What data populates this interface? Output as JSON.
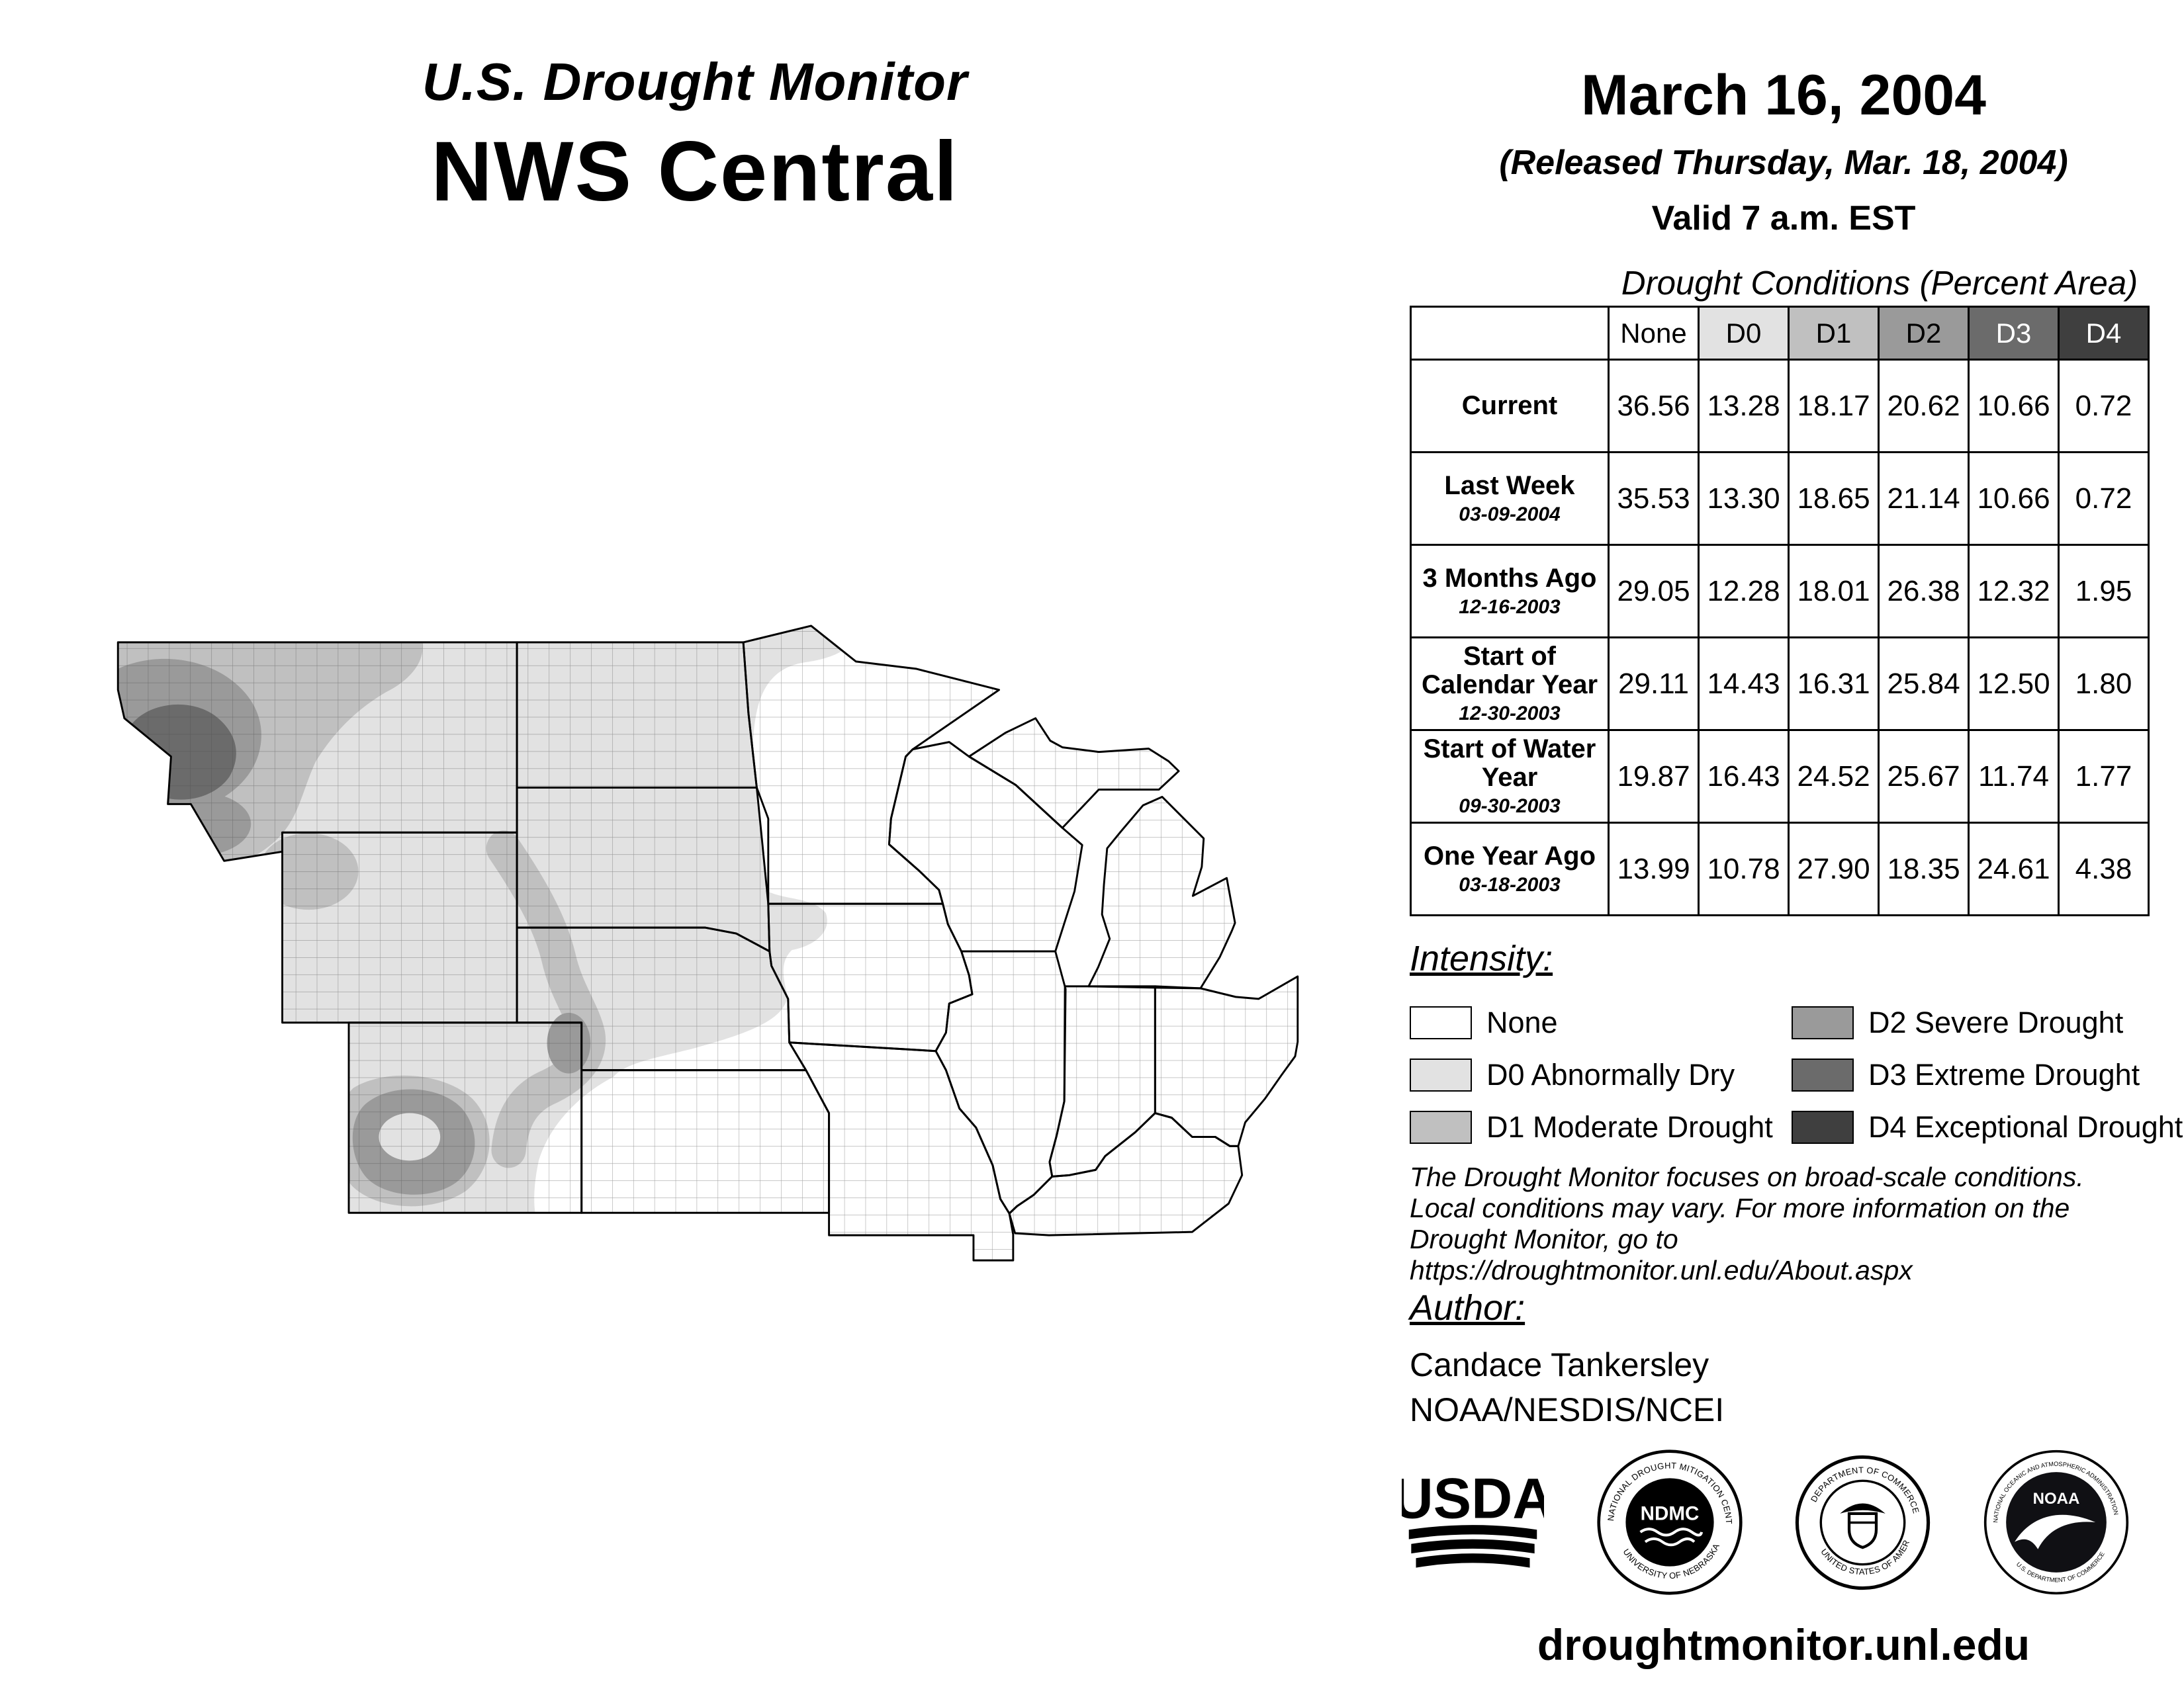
{
  "header": {
    "title": "U.S. Drought Monitor",
    "region": "NWS Central",
    "date": "March 16, 2004",
    "released": "(Released Thursday, Mar. 18, 2004)",
    "valid": "Valid 7 a.m. EST"
  },
  "table": {
    "title": "Drought Conditions (Percent Area)",
    "columns": [
      {
        "label": "None",
        "bg": "#ffffff",
        "fg": "#000000"
      },
      {
        "label": "D0",
        "bg": "#e2e2e2",
        "fg": "#000000"
      },
      {
        "label": "D1",
        "bg": "#c0c0c0",
        "fg": "#000000"
      },
      {
        "label": "D2",
        "bg": "#9a9a9a",
        "fg": "#000000"
      },
      {
        "label": "D3",
        "bg": "#6b6b6b",
        "fg": "#ffffff"
      },
      {
        "label": "D4",
        "bg": "#3f3f3f",
        "fg": "#ffffff"
      }
    ],
    "rows": [
      {
        "label": "Current",
        "date": "",
        "values": [
          "36.56",
          "13.28",
          "18.17",
          "20.62",
          "10.66",
          "0.72"
        ]
      },
      {
        "label": "Last Week",
        "date": "03-09-2004",
        "values": [
          "35.53",
          "13.30",
          "18.65",
          "21.14",
          "10.66",
          "0.72"
        ]
      },
      {
        "label": "3 Months Ago",
        "date": "12-16-2003",
        "values": [
          "29.05",
          "12.28",
          "18.01",
          "26.38",
          "12.32",
          "1.95"
        ]
      },
      {
        "label": "Start of Calendar Year",
        "date": "12-30-2003",
        "values": [
          "29.11",
          "14.43",
          "16.31",
          "25.84",
          "12.50",
          "1.80"
        ]
      },
      {
        "label": "Start of Water Year",
        "date": "09-30-2003",
        "values": [
          "19.87",
          "16.43",
          "24.52",
          "25.67",
          "11.74",
          "1.77"
        ]
      },
      {
        "label": "One Year Ago",
        "date": "03-18-2003",
        "values": [
          "13.99",
          "10.78",
          "27.90",
          "18.35",
          "24.61",
          "4.38"
        ]
      }
    ]
  },
  "legend": {
    "title": "Intensity:",
    "items": [
      {
        "code": "none",
        "label": "None",
        "color": "#ffffff"
      },
      {
        "code": "d0",
        "label": "D0 Abnormally Dry",
        "color": "#e2e2e2"
      },
      {
        "code": "d1",
        "label": "D1 Moderate Drought",
        "color": "#c0c0c0"
      },
      {
        "code": "d2",
        "label": "D2 Severe Drought",
        "color": "#9a9a9a"
      },
      {
        "code": "d3",
        "label": "D3 Extreme Drought",
        "color": "#6b6b6b"
      },
      {
        "code": "d4",
        "label": "D4 Exceptional Drought",
        "color": "#3f3f3f"
      }
    ]
  },
  "disclaimer": {
    "lines": [
      "The Drought Monitor focuses on broad-scale conditions.",
      "Local conditions may vary. For more information on the",
      "Drought Monitor, go to https://droughtmonitor.unl.edu/About.aspx"
    ]
  },
  "author": {
    "heading": "Author:",
    "name": "Candace Tankersley",
    "org": "NOAA/NESDIS/NCEI"
  },
  "logos": {
    "usda": {
      "name": "USDA"
    },
    "ndmc": {
      "name": "NDMC",
      "ring_top": "NATIONAL DROUGHT MITIGATION CENTER",
      "ring_bottom": "UNIVERSITY OF NEBRASKA"
    },
    "commerce": {
      "ring_top": "DEPARTMENT OF COMMERCE",
      "ring_bottom": "UNITED STATES OF AMERICA"
    },
    "noaa": {
      "name": "NOAA",
      "ring_top": "NATIONAL OCEANIC AND ATMOSPHERIC ADMINISTRATION",
      "ring_bottom": "U.S. DEPARTMENT OF COMMERCE"
    }
  },
  "footer": "droughtmonitor.unl.edu"
}
